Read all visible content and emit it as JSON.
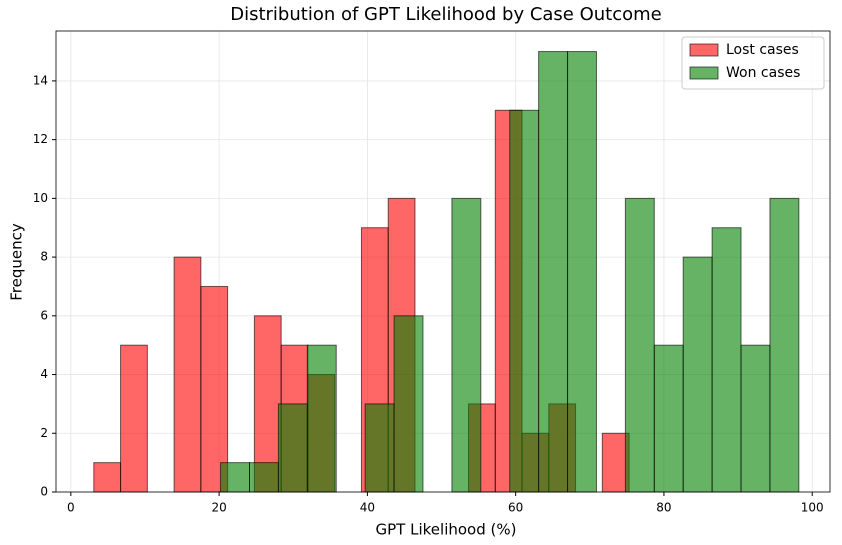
{
  "chart_data": {
    "type": "histogram",
    "title": "Distribution of GPT Likelihood by Case Outcome",
    "x_label": "GPT Likelihood (%)",
    "y_label": "Frequency",
    "series": [
      {
        "name": "Lost cases",
        "color": "#ff0000",
        "bins": [
          3.1,
          6.71,
          10.32,
          13.93,
          17.54,
          21.15,
          24.76,
          28.37,
          31.98,
          35.59,
          39.2,
          42.81,
          46.42,
          50.03,
          53.64,
          57.25,
          60.86,
          64.47,
          68.08,
          71.69,
          75.3
        ],
        "values": [
          1,
          5,
          0,
          8,
          7,
          0,
          6,
          5,
          4,
          0,
          9,
          10,
          0,
          0,
          3,
          13,
          2,
          3,
          0,
          2
        ]
      },
      {
        "name": "Won cases",
        "color": "#008000",
        "bins": [
          20.2,
          24.1,
          28.0,
          31.9,
          35.8,
          39.7,
          43.6,
          47.5,
          51.4,
          55.3,
          59.2,
          63.1,
          67.0,
          70.9,
          74.8,
          78.7,
          82.6,
          86.5,
          90.4,
          94.3,
          98.2
        ],
        "values": [
          1,
          1,
          3,
          5,
          0,
          3,
          6,
          0,
          10,
          0,
          13,
          15,
          15,
          0,
          10,
          5,
          8,
          9,
          5,
          10
        ]
      }
    ],
    "xlim": [
      -2,
      102.4
    ],
    "ylim": [
      0,
      15.7
    ],
    "xticks": [
      0,
      20,
      40,
      60,
      80,
      100
    ],
    "yticks": [
      0,
      2,
      4,
      6,
      8,
      10,
      12,
      14
    ],
    "grid": true,
    "legend": "upper right",
    "opacity": 0.6
  }
}
